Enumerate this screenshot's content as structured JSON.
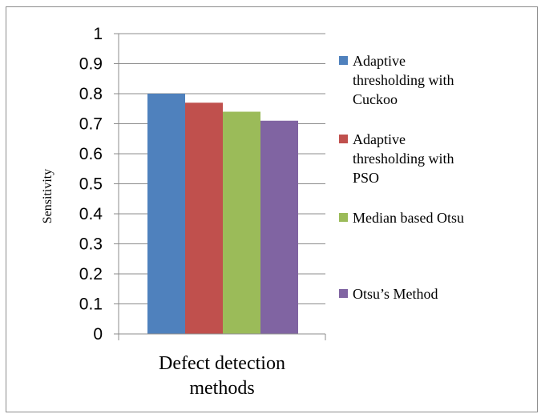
{
  "chart_data": {
    "type": "bar",
    "categories": [
      "Defect detection methods"
    ],
    "category_lines": [
      "Defect detection",
      "methods"
    ],
    "ylabel": "Sensitivity",
    "ylim": [
      0,
      1
    ],
    "yticks": [
      "0",
      "0.1",
      "0.2",
      "0.3",
      "0.4",
      "0.5",
      "0.6",
      "0.7",
      "0.8",
      "0.9",
      "1"
    ],
    "grid": true,
    "legend_position": "right",
    "series": [
      {
        "name": "Adaptive thresholding with Cuckoo",
        "legend_lines": [
          "Adaptive",
          "thresholding with",
          "Cuckoo"
        ],
        "color": "#4f81bd",
        "values": [
          0.8
        ]
      },
      {
        "name": "Adaptive thresholding with PSO",
        "legend_lines": [
          "Adaptive",
          "thresholding with",
          "PSO"
        ],
        "color": "#c0504d",
        "values": [
          0.77
        ]
      },
      {
        "name": "Median based Otsu",
        "legend_lines": [
          "Median based Otsu"
        ],
        "color": "#9bbb59",
        "values": [
          0.74
        ]
      },
      {
        "name": "Otsu’s Method",
        "legend_lines": [
          "Otsu’s Method"
        ],
        "color": "#8064a2",
        "values": [
          0.71
        ]
      }
    ]
  }
}
